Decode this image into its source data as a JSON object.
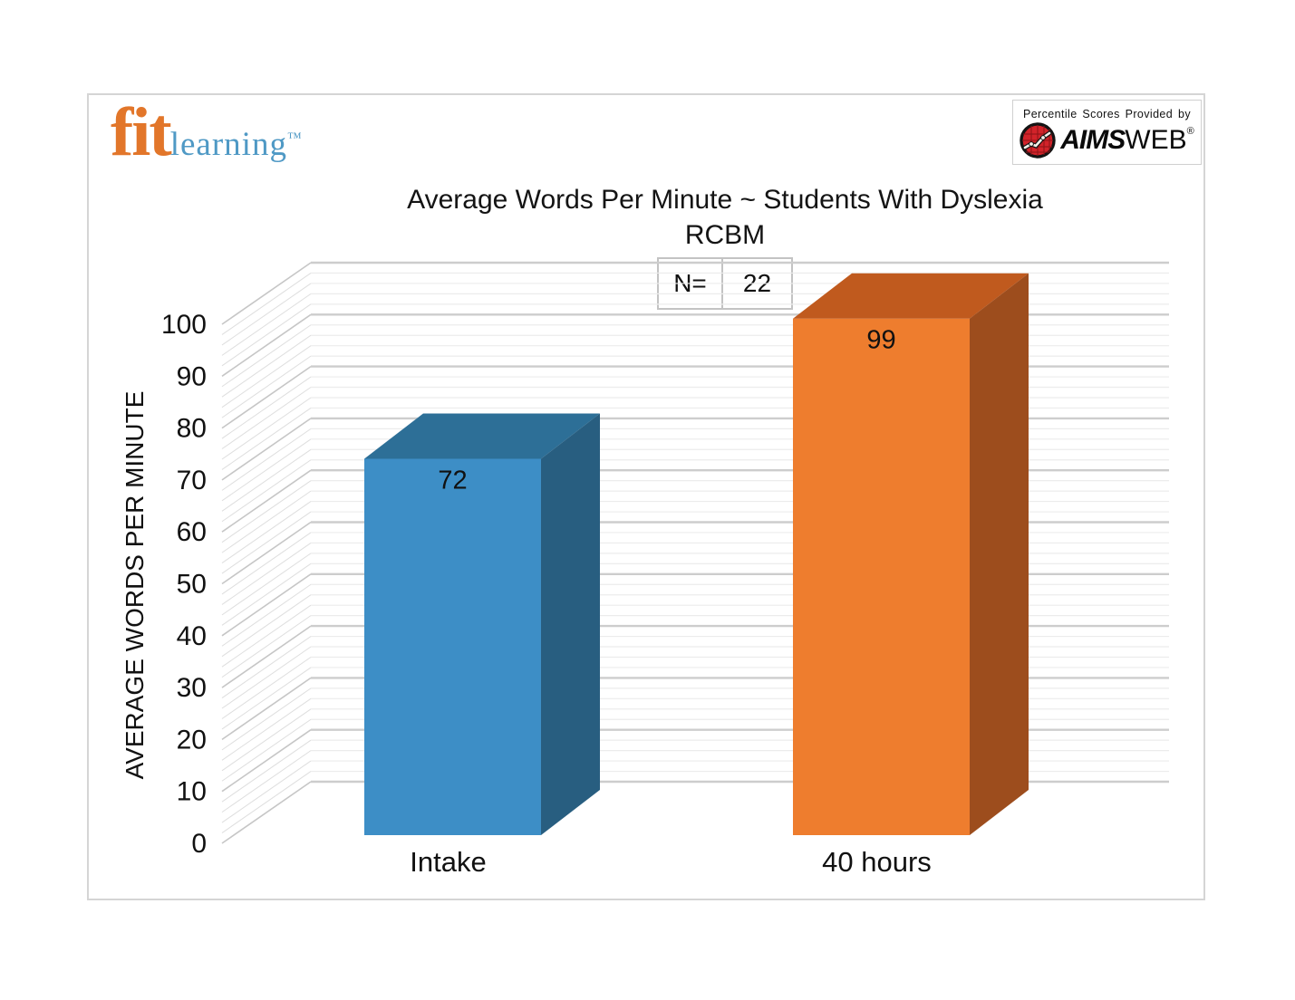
{
  "branding": {
    "fit_logo": {
      "fit": "fit",
      "learning": "learning",
      "trademark": "™",
      "fit_color": "#e2762a",
      "learning_color": "#4f99c5"
    },
    "provider": {
      "caption": "Percentile Scores Provided by",
      "brand_italic": "AIMS",
      "brand_regular": "WEB",
      "registered": "®",
      "icon": "aimsweb-globe-linechart-icon",
      "icon_color": "#d2232a"
    }
  },
  "chart_data": {
    "type": "bar",
    "style": "3d-columns",
    "title": "Average Words Per Minute ~ Students With Dyslexia",
    "subtitle": "RCBM",
    "categories": [
      "Intake",
      "40 hours"
    ],
    "values": [
      72,
      99
    ],
    "data_labels": [
      "72",
      "99"
    ],
    "xlabel": "",
    "ylabel": "AVERAGE WORDS PER MINUTE",
    "ylim": [
      0,
      100
    ],
    "ytick_step": 10,
    "yticks": [
      0,
      10,
      20,
      30,
      40,
      50,
      60,
      70,
      80,
      90,
      100
    ],
    "legend": "none",
    "grid": {
      "horizontal_major": true,
      "horizontal_minor": true,
      "minor_step": 2
    },
    "annotation": {
      "label": "N=",
      "value": "22"
    },
    "colors": {
      "bars": [
        {
          "category": "Intake",
          "front": "#3d8ec6",
          "top": "#2d6f97",
          "side": "#285e80"
        },
        {
          "category": "40 hours",
          "front": "#ee7d2e",
          "top": "#c05a1e",
          "side": "#9d4d1d"
        }
      ],
      "grid_major": "#cdcdcd",
      "grid_minor": "#ececec",
      "text": "#111111"
    }
  }
}
